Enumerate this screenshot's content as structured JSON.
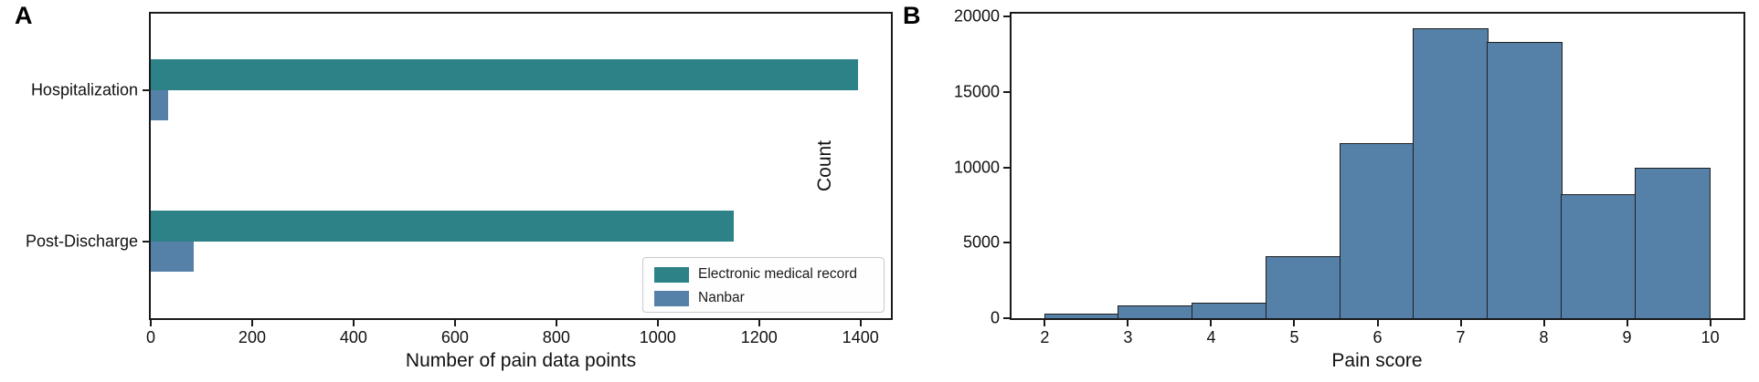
{
  "figure": {
    "panel_a_letter": "A",
    "panel_b_letter": "B"
  },
  "chart_data": [
    {
      "id": "A",
      "type": "bar",
      "orientation": "horizontal",
      "categories": [
        "Hospitalization",
        "Post-Discharge"
      ],
      "series": [
        {
          "name": "Electronic medical record",
          "color": "#2C8287",
          "values": [
            1395,
            1150
          ]
        },
        {
          "name": "Nanbar",
          "color": "#5581A8",
          "values": [
            35,
            85
          ]
        }
      ],
      "xlabel": "Number of pain data points",
      "x_ticks": [
        0,
        200,
        400,
        600,
        800,
        1000,
        1200,
        1400
      ],
      "xlim": [
        0,
        1460
      ],
      "legend_position": "lower right",
      "grid": false
    },
    {
      "id": "B",
      "type": "histogram",
      "xlabel": "Pain score",
      "ylabel": "Count",
      "bin_start": 2,
      "bin_end": 10,
      "bin_count": 9,
      "counts": [
        300,
        850,
        1050,
        4100,
        11600,
        19200,
        18300,
        8200,
        10000
      ],
      "x_ticks": [
        2,
        3,
        4,
        5,
        6,
        7,
        8,
        9,
        10
      ],
      "y_ticks": [
        0,
        5000,
        10000,
        15000,
        20000
      ],
      "xlim": [
        1.6,
        10.4
      ],
      "ylim": [
        0,
        20000
      ],
      "bar_color": "#5581A8",
      "bar_edge_color": "#1f1f1f",
      "grid": false
    }
  ]
}
